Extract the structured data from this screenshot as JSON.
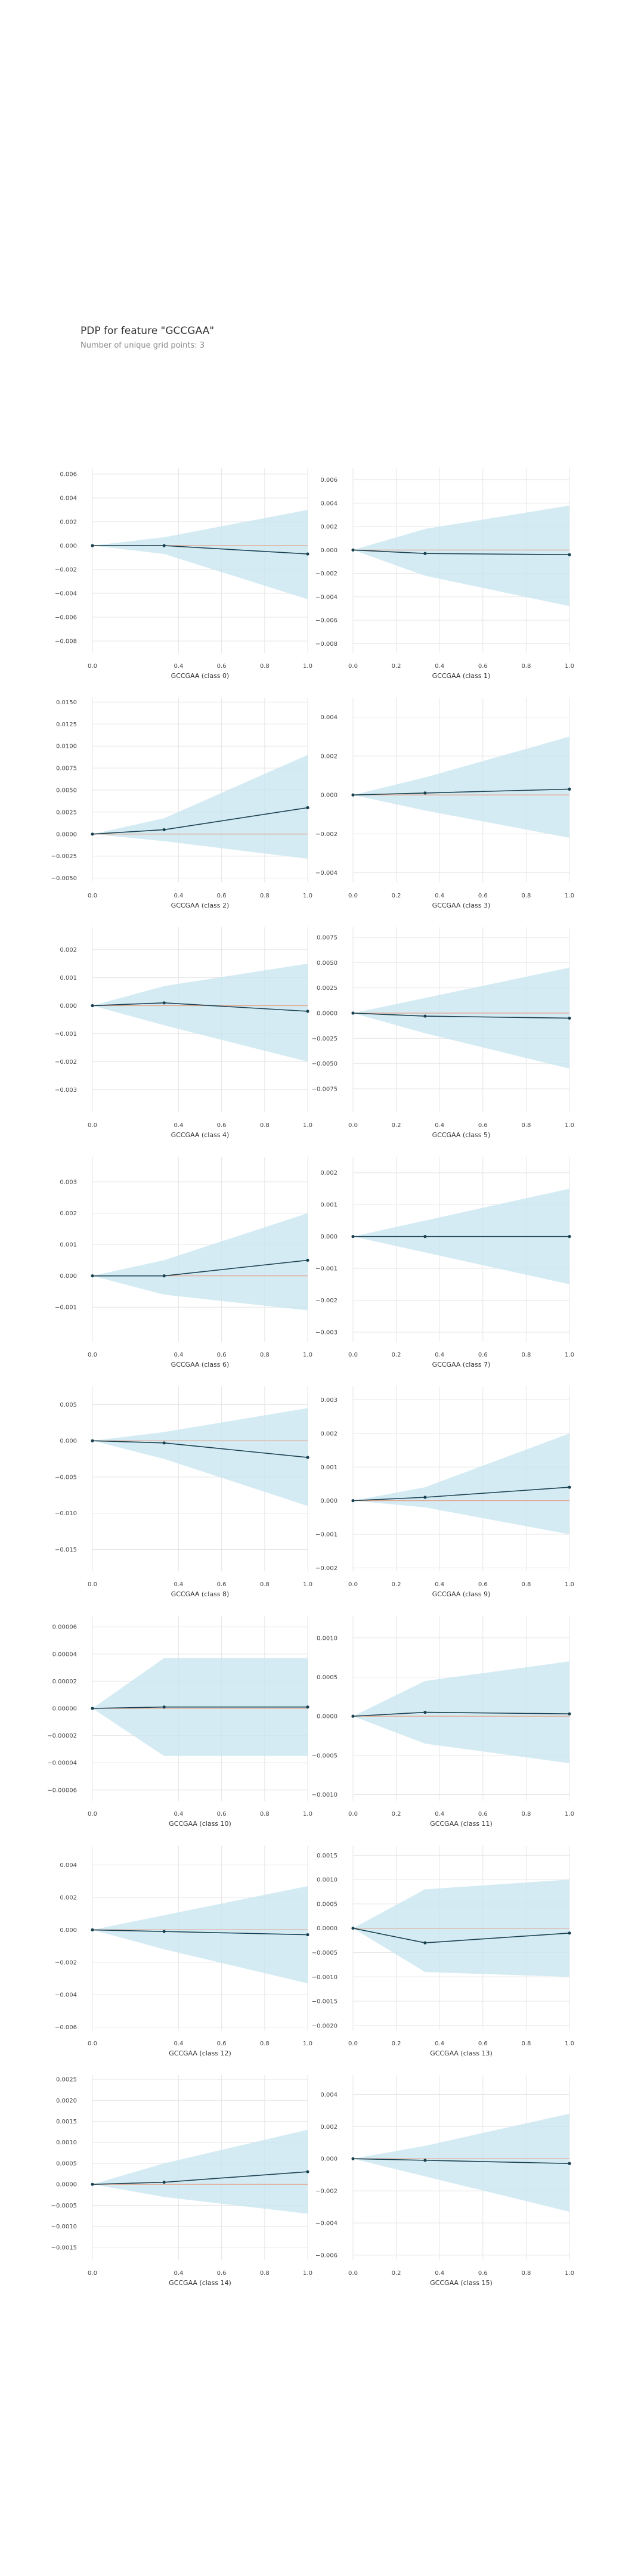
{
  "title": "PDP for feature \"GCCGAA\"",
  "subtitle": "Number of unique grid points: 3",
  "colors": {
    "band": "#c5e4ef",
    "line": "#1a4150",
    "zero_line": "#e3a38a",
    "grid": "#e6e6e6",
    "axis": "#cccccc"
  },
  "chart_data": [
    {
      "type": "line",
      "title": "",
      "xlabel": "GCCGAA (class 0)",
      "ylabel": "",
      "x": [
        0,
        0.333,
        1
      ],
      "y": [
        0,
        0,
        -0.0007
      ],
      "upper": [
        0,
        0.0007,
        0.003
      ],
      "lower": [
        0,
        -0.0007,
        -0.0045
      ],
      "xlim": [
        0,
        1
      ],
      "xticks": [
        "0.0",
        "0.4",
        "0.6",
        "0.8",
        "1.0"
      ],
      "ylim": [
        -0.009,
        0.0065
      ],
      "yticks": [
        "0.006",
        "0.004",
        "0.002",
        "0.000",
        "−0.002",
        "−0.004",
        "−0.006",
        "−0.008"
      ],
      "grid": true
    },
    {
      "type": "line",
      "title": "",
      "xlabel": "GCCGAA (class 1)",
      "ylabel": "",
      "x": [
        0,
        0.333,
        1
      ],
      "y": [
        0,
        -0.0003,
        -0.0004
      ],
      "upper": [
        0,
        0.0018,
        0.0038
      ],
      "lower": [
        0,
        -0.0022,
        -0.0048
      ],
      "xlim": [
        0,
        1
      ],
      "xticks": [
        "0.0",
        "0.2",
        "0.4",
        "0.6",
        "0.8",
        "1.0"
      ],
      "ylim": [
        -0.0088,
        0.007
      ],
      "yticks": [
        "0.006",
        "0.004",
        "0.002",
        "0.000",
        "−0.002",
        "−0.004",
        "−0.006",
        "−0.008"
      ],
      "grid": true
    },
    {
      "type": "line",
      "title": "",
      "xlabel": "GCCGAA (class 2)",
      "ylabel": "",
      "x": [
        0,
        0.333,
        1
      ],
      "y": [
        0,
        0.0005,
        0.003
      ],
      "upper": [
        0,
        0.0018,
        0.009
      ],
      "lower": [
        0,
        -0.0008,
        -0.0028
      ],
      "xlim": [
        0,
        1
      ],
      "xticks": [
        "0.0",
        "0.4",
        "0.6",
        "0.8",
        "1.0"
      ],
      "ylim": [
        -0.0055,
        0.0155
      ],
      "yticks": [
        "0.0150",
        "0.0125",
        "0.0100",
        "0.0075",
        "0.0050",
        "0.0025",
        "0.0000",
        "−0.0025",
        "−0.0050"
      ],
      "grid": true
    },
    {
      "type": "line",
      "title": "",
      "xlabel": "GCCGAA (class 3)",
      "ylabel": "",
      "x": [
        0,
        0.333,
        1
      ],
      "y": [
        0,
        0.0001,
        0.0003
      ],
      "upper": [
        0,
        0.0009,
        0.003
      ],
      "lower": [
        0,
        -0.0008,
        -0.0022
      ],
      "xlim": [
        0,
        1
      ],
      "xticks": [
        "0.0",
        "0.2",
        "0.4",
        "0.6",
        "0.8",
        "1.0"
      ],
      "ylim": [
        -0.0045,
        0.005
      ],
      "yticks": [
        "0.004",
        "0.002",
        "0.000",
        "−0.002",
        "−0.004"
      ],
      "grid": true
    },
    {
      "type": "line",
      "title": "",
      "xlabel": "GCCGAA (class 4)",
      "ylabel": "",
      "x": [
        0,
        0.333,
        1
      ],
      "y": [
        0,
        0.0001,
        -0.0002
      ],
      "upper": [
        0,
        0.0007,
        0.0015
      ],
      "lower": [
        0,
        -0.0007,
        -0.002
      ],
      "xlim": [
        0,
        1
      ],
      "xticks": [
        "0.0",
        "0.4",
        "0.6",
        "0.8",
        "1.0"
      ],
      "ylim": [
        -0.0038,
        0.0028
      ],
      "yticks": [
        "0.002",
        "0.001",
        "0.000",
        "−0.001",
        "−0.002",
        "−0.003"
      ],
      "grid": true
    },
    {
      "type": "line",
      "title": "",
      "xlabel": "GCCGAA (class 5)",
      "ylabel": "",
      "x": [
        0,
        0.333,
        1
      ],
      "y": [
        0,
        -0.0003,
        -0.0005
      ],
      "upper": [
        0,
        0.0015,
        0.0045
      ],
      "lower": [
        0,
        -0.002,
        -0.0055
      ],
      "xlim": [
        0,
        1
      ],
      "xticks": [
        "0.0",
        "0.2",
        "0.4",
        "0.6",
        "0.8",
        "1.0"
      ],
      "ylim": [
        -0.0098,
        0.0085
      ],
      "yticks": [
        "0.0075",
        "0.0050",
        "0.0025",
        "0.0000",
        "−0.0025",
        "−0.0050",
        "−0.0075"
      ],
      "grid": true
    },
    {
      "type": "line",
      "title": "",
      "xlabel": "GCCGAA (class 6)",
      "ylabel": "",
      "x": [
        0,
        0.333,
        1
      ],
      "y": [
        0,
        0,
        0.0005
      ],
      "upper": [
        0,
        0.0005,
        0.002
      ],
      "lower": [
        0,
        -0.0006,
        -0.0011
      ],
      "xlim": [
        0,
        1
      ],
      "xticks": [
        "0.0",
        "0.4",
        "0.6",
        "0.8",
        "1.0"
      ],
      "ylim": [
        -0.0021,
        0.0038
      ],
      "yticks": [
        "0.003",
        "0.002",
        "0.001",
        "0.000",
        "−0.001"
      ],
      "grid": true
    },
    {
      "type": "line",
      "title": "",
      "xlabel": "GCCGAA (class 7)",
      "ylabel": "",
      "x": [
        0,
        0.333,
        1
      ],
      "y": [
        0,
        0,
        0
      ],
      "upper": [
        0,
        0.0005,
        0.0015
      ],
      "lower": [
        0,
        -0.0005,
        -0.0015
      ],
      "xlim": [
        0,
        1
      ],
      "xticks": [
        "0.0",
        "0.2",
        "0.4",
        "0.6",
        "0.8",
        "1.0"
      ],
      "ylim": [
        -0.0033,
        0.0025
      ],
      "yticks": [
        "0.002",
        "0.001",
        "0.000",
        "−0.001",
        "−0.002",
        "−0.003"
      ],
      "grid": true
    },
    {
      "type": "line",
      "title": "",
      "xlabel": "GCCGAA (class 8)",
      "ylabel": "",
      "x": [
        0,
        0.333,
        1
      ],
      "y": [
        0,
        -0.0003,
        -0.0023
      ],
      "upper": [
        0,
        0.0012,
        0.0045
      ],
      "lower": [
        0,
        -0.0025,
        -0.009
      ],
      "xlim": [
        0,
        1
      ],
      "xticks": [
        "0.0",
        "0.4",
        "0.6",
        "0.8",
        "1.0"
      ],
      "ylim": [
        -0.018,
        0.0075
      ],
      "yticks": [
        "0.005",
        "0.000",
        "−0.005",
        "−0.010",
        "−0.015"
      ],
      "grid": true
    },
    {
      "type": "line",
      "title": "",
      "xlabel": "GCCGAA (class 9)",
      "ylabel": "",
      "x": [
        0,
        0.333,
        1
      ],
      "y": [
        0,
        0.0001,
        0.0004
      ],
      "upper": [
        0,
        0.0004,
        0.002
      ],
      "lower": [
        0,
        -0.0002,
        -0.001
      ],
      "xlim": [
        0,
        1
      ],
      "xticks": [
        "0.0",
        "0.2",
        "0.4",
        "0.6",
        "0.8",
        "1.0"
      ],
      "ylim": [
        -0.0021,
        0.0034
      ],
      "yticks": [
        "0.003",
        "0.002",
        "0.001",
        "0.000",
        "−0.001",
        "−0.002"
      ],
      "grid": true
    },
    {
      "type": "line",
      "title": "",
      "xlabel": "GCCGAA (class 10)",
      "ylabel": "",
      "x": [
        0,
        0.333,
        1
      ],
      "y": [
        0,
        1e-06,
        1e-06
      ],
      "upper": [
        0,
        3.7e-05,
        3.7e-05
      ],
      "lower": [
        0,
        -3.5e-05,
        -3.5e-05
      ],
      "xlim": [
        0,
        1
      ],
      "xticks": [
        "0.0",
        "0.4",
        "0.6",
        "0.8",
        "1.0"
      ],
      "ylim": [
        -6.8e-05,
        6.8e-05
      ],
      "yticks": [
        "0.00006",
        "0.00004",
        "0.00002",
        "0.00000",
        "−0.00002",
        "−0.00004",
        "−0.00006"
      ],
      "grid": true
    },
    {
      "type": "line",
      "title": "",
      "xlabel": "GCCGAA (class 11)",
      "ylabel": "",
      "x": [
        0,
        0.333,
        1
      ],
      "y": [
        0,
        5e-05,
        3e-05
      ],
      "upper": [
        0,
        0.00045,
        0.0007
      ],
      "lower": [
        0,
        -0.00035,
        -0.0006
      ],
      "xlim": [
        0,
        1
      ],
      "xticks": [
        "0.0",
        "0.2",
        "0.4",
        "0.6",
        "0.8",
        "1.0"
      ],
      "ylim": [
        -0.00108,
        0.00128
      ],
      "yticks": [
        "0.0010",
        "0.0005",
        "0.0000",
        "−0.0005",
        "−0.0010"
      ],
      "grid": true
    },
    {
      "type": "line",
      "title": "",
      "xlabel": "GCCGAA (class 12)",
      "ylabel": "",
      "x": [
        0,
        0.333,
        1
      ],
      "y": [
        0,
        -0.0001,
        -0.0003
      ],
      "upper": [
        0,
        0.0009,
        0.0027
      ],
      "lower": [
        0,
        -0.0012,
        -0.0033
      ],
      "xlim": [
        0,
        1
      ],
      "xticks": [
        "0.0",
        "0.4",
        "0.6",
        "0.8",
        "1.0"
      ],
      "ylim": [
        -0.0062,
        0.0052
      ],
      "yticks": [
        "0.004",
        "0.002",
        "0.000",
        "−0.002",
        "−0.004",
        "−0.006"
      ],
      "grid": true
    },
    {
      "type": "line",
      "title": "",
      "xlabel": "GCCGAA (class 13)",
      "ylabel": "",
      "x": [
        0,
        0.333,
        1
      ],
      "y": [
        0,
        -0.0003,
        -0.0001
      ],
      "upper": [
        0,
        0.0008,
        0.001
      ],
      "lower": [
        0,
        -0.0009,
        -0.001
      ],
      "xlim": [
        0,
        1
      ],
      "xticks": [
        "0.0",
        "0.2",
        "0.4",
        "0.6",
        "0.8",
        "1.0"
      ],
      "ylim": [
        -0.0021,
        0.0017
      ],
      "yticks": [
        "0.0015",
        "0.0010",
        "0.0005",
        "0.0000",
        "−0.0005",
        "−0.0010",
        "−0.0015",
        "−0.0020"
      ],
      "grid": true
    },
    {
      "type": "line",
      "title": "",
      "xlabel": "GCCGAA (class 14)",
      "ylabel": "",
      "x": [
        0,
        0.333,
        1
      ],
      "y": [
        0,
        5e-05,
        0.0003
      ],
      "upper": [
        0,
        0.0005,
        0.0013
      ],
      "lower": [
        0,
        -0.0003,
        -0.0007
      ],
      "xlim": [
        0,
        1
      ],
      "xticks": [
        "0.0",
        "0.4",
        "0.6",
        "0.8",
        "1.0"
      ],
      "ylim": [
        -0.0018,
        0.0026
      ],
      "yticks": [
        "0.0025",
        "0.0020",
        "0.0015",
        "0.0010",
        "0.0005",
        "0.0000",
        "−0.0005",
        "−0.0010",
        "−0.0015"
      ],
      "grid": true
    },
    {
      "type": "line",
      "title": "",
      "xlabel": "GCCGAA (class 15)",
      "ylabel": "",
      "x": [
        0,
        0.333,
        1
      ],
      "y": [
        0,
        -0.0001,
        -0.0003
      ],
      "upper": [
        0,
        0.0008,
        0.0028
      ],
      "lower": [
        0,
        -0.0011,
        -0.0033
      ],
      "xlim": [
        0,
        1
      ],
      "xticks": [
        "0.0",
        "0.2",
        "0.4",
        "0.6",
        "0.8",
        "1.0"
      ],
      "ylim": [
        -0.0063,
        0.0052
      ],
      "yticks": [
        "0.004",
        "0.002",
        "0.000",
        "−0.002",
        "−0.004",
        "−0.006"
      ],
      "grid": true
    }
  ]
}
